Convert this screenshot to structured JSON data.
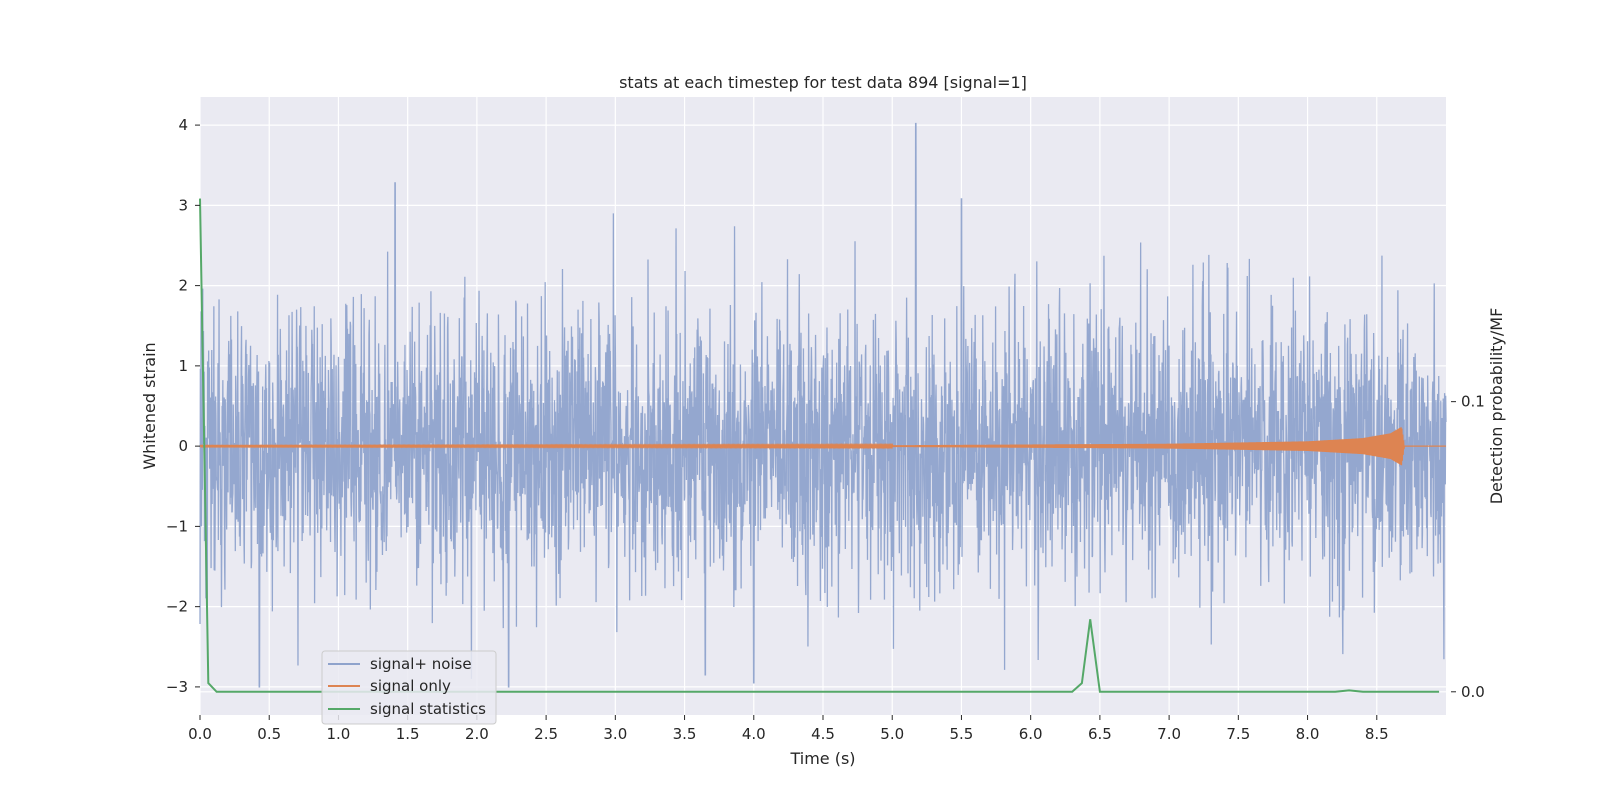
{
  "chart_data": {
    "type": "line",
    "title": "stats at each timestep for test data 894 [signal=1]",
    "xlabel": "Time (s)",
    "ylabel": "Whitened strain",
    "ylabel_right": "Detection probability/MF",
    "xlim": [
      0,
      9.0
    ],
    "ylim": [
      -3.35,
      4.35
    ],
    "ylim_right": [
      -0.008,
      0.205
    ],
    "x_ticks": [
      "0.0",
      "0.5",
      "1.0",
      "1.5",
      "2.0",
      "2.5",
      "3.0",
      "3.5",
      "4.0",
      "4.5",
      "5.0",
      "5.5",
      "6.0",
      "6.5",
      "7.0",
      "7.5",
      "8.0",
      "8.5"
    ],
    "x_tick_values": [
      0.0,
      0.5,
      1.0,
      1.5,
      2.0,
      2.5,
      3.0,
      3.5,
      4.0,
      4.5,
      5.0,
      5.5,
      6.0,
      6.5,
      7.0,
      7.5,
      8.0,
      8.5
    ],
    "y_ticks": [
      "−3",
      "−2",
      "−1",
      "0",
      "1",
      "2",
      "3",
      "4"
    ],
    "y_tick_values": [
      -3,
      -2,
      -1,
      0,
      1,
      2,
      3,
      4
    ],
    "y_right_ticks": [
      "0.0",
      "0.1"
    ],
    "y_right_tick_values": [
      0.0,
      0.1
    ],
    "grid": true,
    "legend_position": "lower-left",
    "series": [
      {
        "name": "signal+ noise",
        "color": "#8fa3cc",
        "description_values": {
          "typical_range": [
            -1.5,
            1.5
          ],
          "spikes": [
            {
              "x": 1.41,
              "y": 3.28
            },
            {
              "x": 5.17,
              "y": 4.02
            },
            {
              "x": 5.5,
              "y": 3.08
            },
            {
              "x": 0.43,
              "y": -3.0
            },
            {
              "x": 2.23,
              "y": -3.0
            },
            {
              "x": 4.0,
              "y": -2.95
            },
            {
              "x": 3.65,
              "y": -2.85
            }
          ]
        }
      },
      {
        "name": "signal only",
        "color": "#dd8452",
        "envelope": [
          {
            "x": 0.0,
            "amp": 0.005
          },
          {
            "x": 5.0,
            "amp": 0.01
          },
          {
            "x": 7.0,
            "amp": 0.03
          },
          {
            "x": 8.0,
            "amp": 0.06
          },
          {
            "x": 8.4,
            "amp": 0.1
          },
          {
            "x": 8.6,
            "amp": 0.16
          },
          {
            "x": 8.68,
            "amp": 0.24
          },
          {
            "x": 8.7,
            "amp": 0.0
          }
        ]
      },
      {
        "name": "signal statistics",
        "color": "#55a868",
        "axis": "right",
        "x": [
          0.0,
          0.06,
          0.12,
          0.2,
          6.0,
          6.3,
          6.37,
          6.43,
          6.5,
          8.2,
          8.3,
          8.4,
          8.95
        ],
        "y": [
          0.17,
          0.003,
          0.0,
          0.0,
          0.0,
          0.0,
          0.003,
          0.025,
          0.0,
          0.0,
          0.0005,
          0.0,
          0.0
        ]
      }
    ]
  }
}
